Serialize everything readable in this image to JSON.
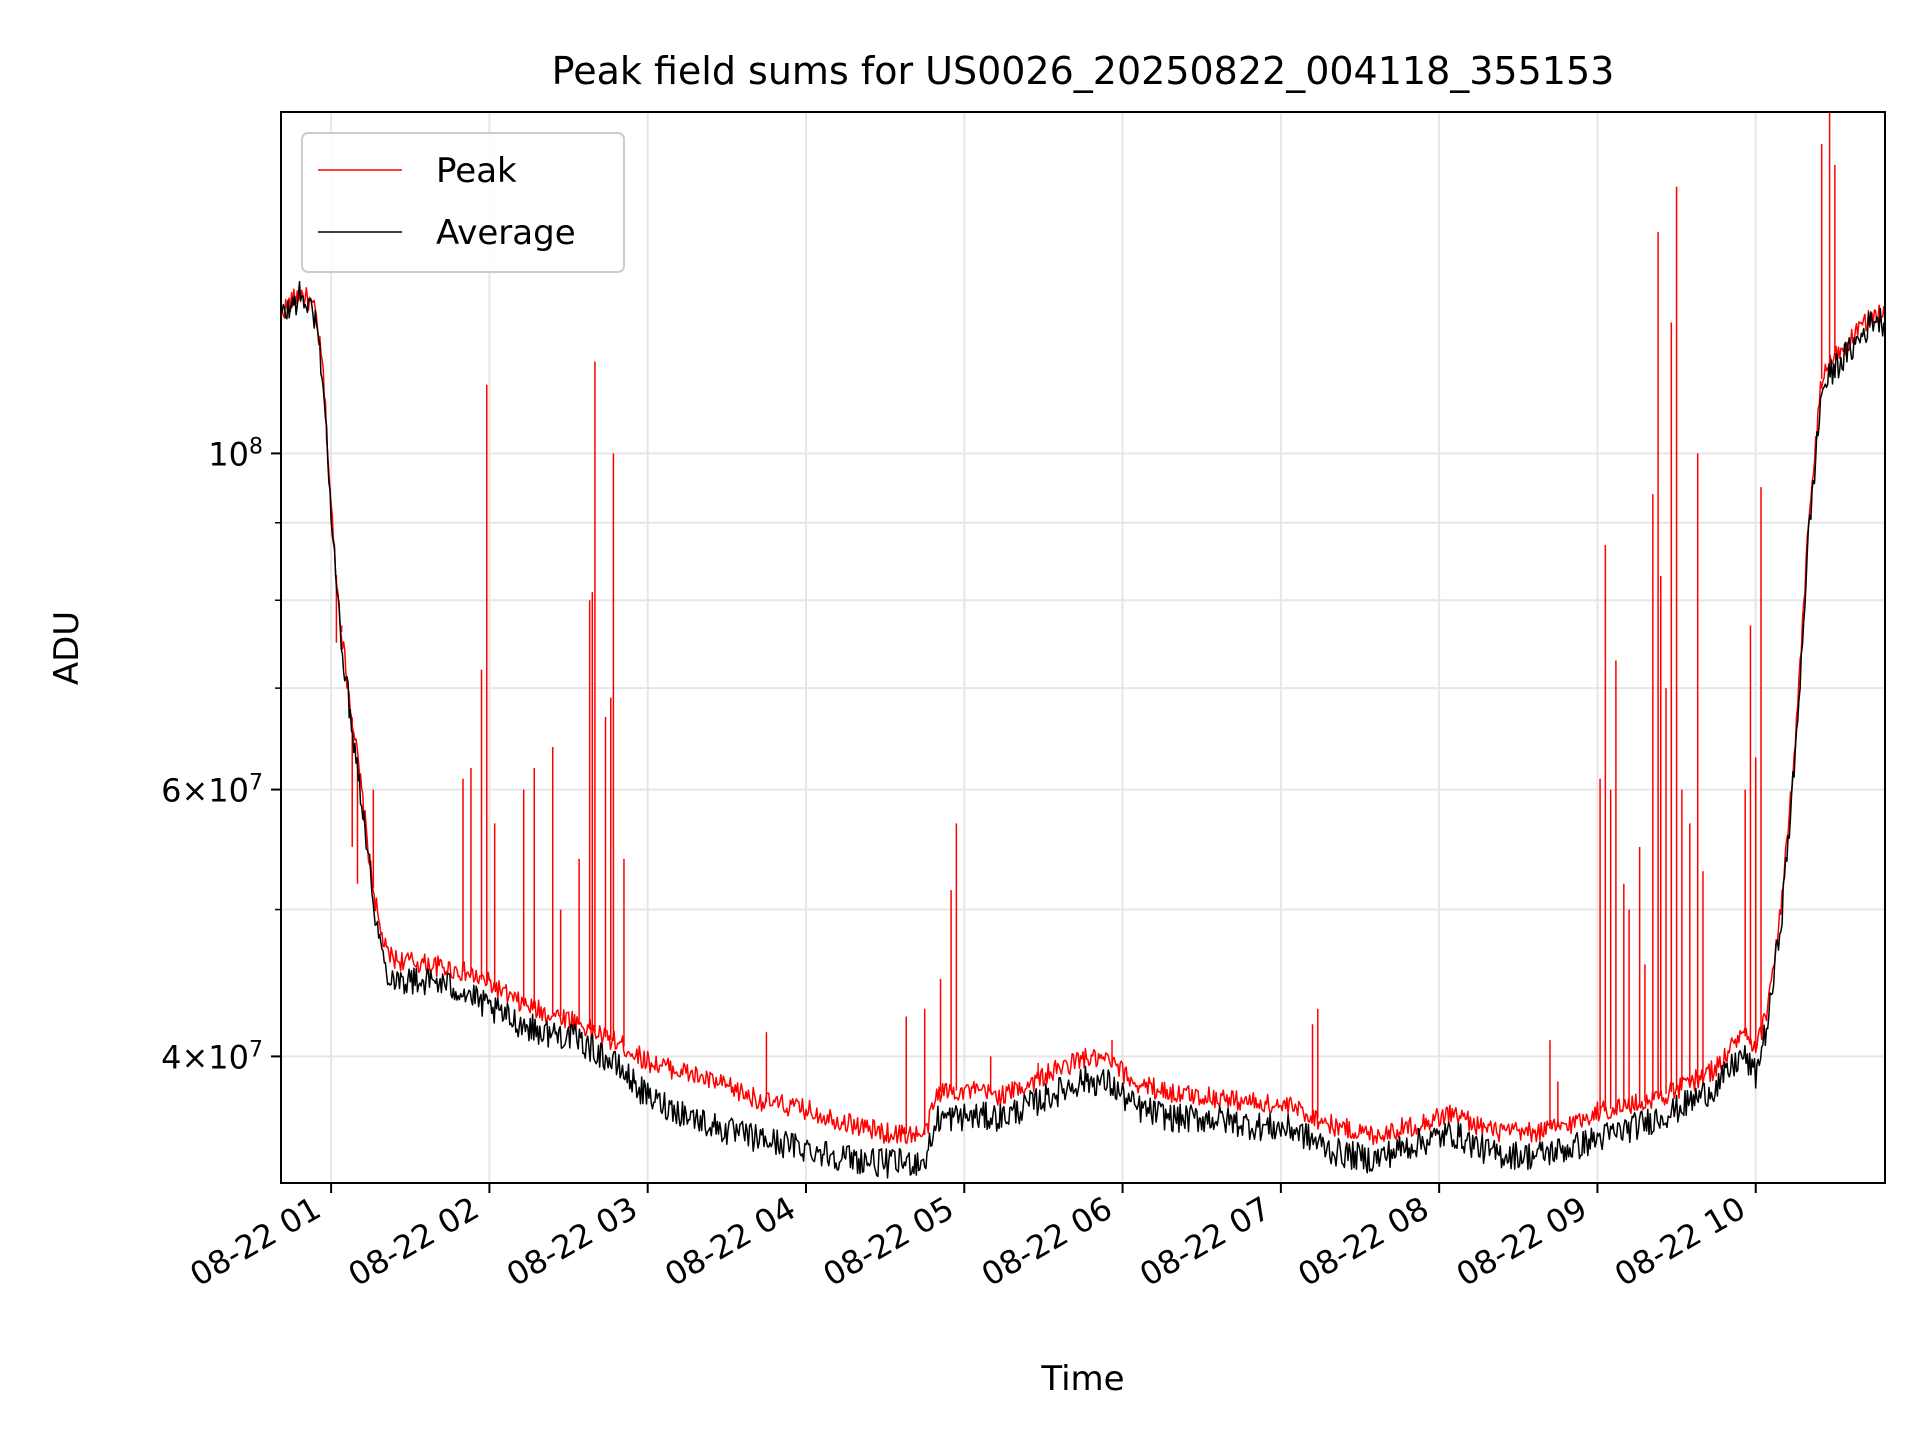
{
  "chart_data": {
    "type": "line",
    "title": "Peak field sums for US0026_20250822_004118_355153",
    "xlabel": "Time",
    "ylabel": "ADU",
    "yscale": "log",
    "grid": true,
    "legend_position": "upper left",
    "xlim": [
      "2025-08-22 00:41",
      "2025-08-22 10:49"
    ],
    "ylim": [
      33000000,
      168000000
    ],
    "x_ticks": [
      "08-22 01",
      "08-22 02",
      "08-22 03",
      "08-22 04",
      "08-22 05",
      "08-22 06",
      "08-22 07",
      "08-22 08",
      "08-22 09",
      "08-22 10"
    ],
    "y_tick_labels": [
      {
        "value": 100000000,
        "mant": "",
        "exp": "8"
      },
      {
        "value": 60000000,
        "mant": "6",
        "exp": "7"
      },
      {
        "value": 40000000,
        "mant": "4",
        "exp": "7"
      }
    ],
    "y_minor_ticks": [
      50000000,
      70000000,
      80000000,
      90000000
    ],
    "x": [
      "00:41",
      "00:45",
      "00:48",
      "00:51",
      "00:54",
      "00:57",
      "01:00",
      "01:03",
      "01:06",
      "01:09",
      "01:12",
      "01:15",
      "01:18",
      "01:21",
      "01:25",
      "01:30",
      "01:40",
      "01:50",
      "02:00",
      "02:10",
      "02:20",
      "02:30",
      "02:40",
      "02:50",
      "03:00",
      "03:15",
      "03:30",
      "03:45",
      "04:00",
      "04:15",
      "04:30",
      "04:45",
      "04:50",
      "05:00",
      "05:15",
      "05:30",
      "05:45",
      "05:55",
      "06:05",
      "06:20",
      "06:35",
      "06:50",
      "07:05",
      "07:20",
      "07:35",
      "07:50",
      "08:05",
      "08:20",
      "08:35",
      "08:50",
      "09:00",
      "09:15",
      "09:30",
      "09:45",
      "09:55",
      "10:00",
      "10:05",
      "10:10",
      "10:15",
      "10:20",
      "10:25",
      "10:30",
      "10:35",
      "10:40",
      "10:45",
      "10:49"
    ],
    "series": [
      {
        "name": "Peak",
        "color": "#ff0000",
        "values": [
          124000000,
          126000000,
          127500000,
          126500000,
          124000000,
          113000000,
          92000000,
          79000000,
          71000000,
          65000000,
          59000000,
          53000000,
          49000000,
          46800000,
          46300000,
          46200000,
          45900000,
          45500000,
          44700000,
          43500000,
          42800000,
          42400000,
          41500000,
          40700000,
          39700000,
          39000000,
          38200000,
          37300000,
          36900000,
          36200000,
          35600000,
          35500000,
          37900000,
          38000000,
          37700000,
          38800000,
          39900000,
          39700000,
          38400000,
          37800000,
          37600000,
          37300000,
          37000000,
          36000000,
          35500000,
          36000000,
          36700000,
          35700000,
          35600000,
          36100000,
          36800000,
          37200000,
          38000000,
          39300000,
          41500000,
          40200000,
          43500000,
          51000000,
          64000000,
          90000000,
          112000000,
          116000000,
          118000000,
          121000000,
          124000000,
          123000000
        ]
      },
      {
        "name": "Average",
        "color": "#000000",
        "values": [
          123000000,
          125000000,
          127000000,
          125500000,
          123000000,
          112000000,
          91000000,
          78000000,
          70000000,
          64000000,
          58500000,
          52500000,
          48000000,
          45500000,
          45000000,
          44900000,
          44800000,
          44200000,
          43000000,
          42200000,
          41500000,
          41300000,
          40400000,
          39200000,
          37600000,
          36600000,
          35700000,
          35200000,
          34800000,
          34300000,
          34000000,
          34100000,
          36400000,
          36500000,
          36500000,
          37500000,
          38600000,
          38400000,
          37000000,
          36400000,
          36400000,
          36000000,
          35800000,
          34600000,
          34200000,
          35000000,
          35600000,
          34500000,
          34400000,
          34800000,
          35300000,
          36000000,
          36900000,
          38200000,
          40100000,
          38900000,
          42500000,
          50000000,
          63000000,
          88000000,
          110000000,
          114000000,
          116500000,
          119500000,
          123000000,
          122000000
        ]
      }
    ],
    "peak_spikes": [
      {
        "t": "01:02",
        "value": 75000000
      },
      {
        "t": "01:04",
        "value": 77000000
      },
      {
        "t": "01:08",
        "value": 55000000
      },
      {
        "t": "01:10",
        "value": 52000000
      },
      {
        "t": "01:16",
        "value": 60000000
      },
      {
        "t": "01:50",
        "value": 61000000
      },
      {
        "t": "01:53",
        "value": 62000000
      },
      {
        "t": "01:57",
        "value": 72000000
      },
      {
        "t": "01:59",
        "value": 111000000
      },
      {
        "t": "02:02",
        "value": 57000000
      },
      {
        "t": "02:13",
        "value": 60000000
      },
      {
        "t": "02:17",
        "value": 62000000
      },
      {
        "t": "02:24",
        "value": 64000000
      },
      {
        "t": "02:27",
        "value": 50000000
      },
      {
        "t": "02:34",
        "value": 54000000
      },
      {
        "t": "02:38",
        "value": 80000000
      },
      {
        "t": "02:39",
        "value": 81000000
      },
      {
        "t": "02:40",
        "value": 115000000
      },
      {
        "t": "02:44",
        "value": 67000000
      },
      {
        "t": "02:46",
        "value": 69000000
      },
      {
        "t": "02:47",
        "value": 100000000
      },
      {
        "t": "02:51",
        "value": 54000000
      },
      {
        "t": "03:45",
        "value": 41500000
      },
      {
        "t": "04:38",
        "value": 42500000
      },
      {
        "t": "04:45",
        "value": 43000000
      },
      {
        "t": "04:51",
        "value": 45000000
      },
      {
        "t": "04:55",
        "value": 51500000
      },
      {
        "t": "04:57",
        "value": 57000000
      },
      {
        "t": "05:10",
        "value": 40000000
      },
      {
        "t": "05:28",
        "value": 39600000
      },
      {
        "t": "05:56",
        "value": 41000000
      },
      {
        "t": "07:12",
        "value": 42000000
      },
      {
        "t": "07:14",
        "value": 43000000
      },
      {
        "t": "08:42",
        "value": 41000000
      },
      {
        "t": "08:45",
        "value": 38500000
      },
      {
        "t": "09:01",
        "value": 61000000
      },
      {
        "t": "09:03",
        "value": 87000000
      },
      {
        "t": "09:05",
        "value": 60000000
      },
      {
        "t": "09:07",
        "value": 73000000
      },
      {
        "t": "09:10",
        "value": 52000000
      },
      {
        "t": "09:12",
        "value": 50000000
      },
      {
        "t": "09:16",
        "value": 55000000
      },
      {
        "t": "09:18",
        "value": 46000000
      },
      {
        "t": "09:21",
        "value": 94000000
      },
      {
        "t": "09:23",
        "value": 140000000
      },
      {
        "t": "09:24",
        "value": 83000000
      },
      {
        "t": "09:26",
        "value": 70000000
      },
      {
        "t": "09:28",
        "value": 122000000
      },
      {
        "t": "09:30",
        "value": 150000000
      },
      {
        "t": "09:32",
        "value": 60000000
      },
      {
        "t": "09:35",
        "value": 57000000
      },
      {
        "t": "09:38",
        "value": 100000000
      },
      {
        "t": "09:40",
        "value": 53000000
      },
      {
        "t": "09:56",
        "value": 60000000
      },
      {
        "t": "09:58",
        "value": 77000000
      },
      {
        "t": "10:00",
        "value": 63000000
      },
      {
        "t": "10:02",
        "value": 95000000
      },
      {
        "t": "10:25",
        "value": 160000000
      },
      {
        "t": "10:28",
        "value": 168000000
      },
      {
        "t": "10:30",
        "value": 155000000
      }
    ]
  }
}
